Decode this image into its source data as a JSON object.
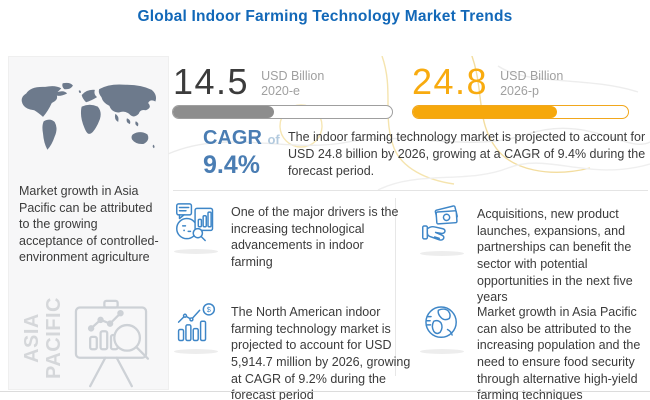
{
  "title": "Global Indoor Farming Technology Market Trends",
  "colors": {
    "title_blue": "#1268b8",
    "steel_blue": "#4a7db3",
    "icon_blue": "#3e86c7",
    "accent_yellow": "#f6a80c",
    "bar_gray": "#8d8d8d",
    "map_slate": "#6d7a8c",
    "text_dark": "#3b3b3b",
    "muted_gray": "#a0a0a0"
  },
  "stats": {
    "current": {
      "value": "14.5",
      "unit": "USD Billion",
      "year": "2020-e",
      "bar_percent": 46
    },
    "forecast": {
      "value": "24.8",
      "unit": "USD Billion",
      "year": "2026-p",
      "bar_percent": 67
    }
  },
  "cagr": {
    "label": "CAGR",
    "connector": "of",
    "value": "9.4%"
  },
  "summary": "The indoor farming technology market is projected to account for USD 24.8 billion by 2026, growing at a CAGR of 9.4% during the forecast period.",
  "sidebar": {
    "note": "Market growth in Asia Pacific can be attributed to the growing acceptance of controlled-environment agriculture",
    "region_label": "ASIA PACIFIC",
    "map_icon": "world-map",
    "easel_icon": "presentation-chart-magnifier-icon"
  },
  "insights": [
    {
      "icon": "technology-analytics-icon",
      "text": "One of the major drivers is the increasing technological advancements in indoor farming"
    },
    {
      "icon": "investment-hand-icon",
      "text": "Acquisitions, new product launches, expansions, and partnerships can benefit the sector with potential opportunities in the next five years"
    },
    {
      "icon": "market-growth-chart-icon",
      "text": "The North American indoor farming technology market is projected to account for USD 5,914.7 million by 2026, growing at CAGR of 9.2% during the forecast period"
    },
    {
      "icon": "globe-icon",
      "text": "Market growth in Asia Pacific can also be attributed to the increasing population and the need to ensure food security through alternative high-yield farming techniques"
    }
  ],
  "chart_data": {
    "type": "bar",
    "categories": [
      "2020-e",
      "2026-p"
    ],
    "values": [
      14.5,
      24.8
    ],
    "unit": "USD Billion",
    "title": "Global Indoor Farming Technology Market Trends",
    "annotations": [
      "CAGR of 9.4% during the forecast period",
      "North America: USD 5,914.7 million by 2026 at CAGR of 9.2%",
      "Asia Pacific growth driven by controlled-environment agriculture acceptance"
    ],
    "legend_position": "none",
    "grid": false
  }
}
